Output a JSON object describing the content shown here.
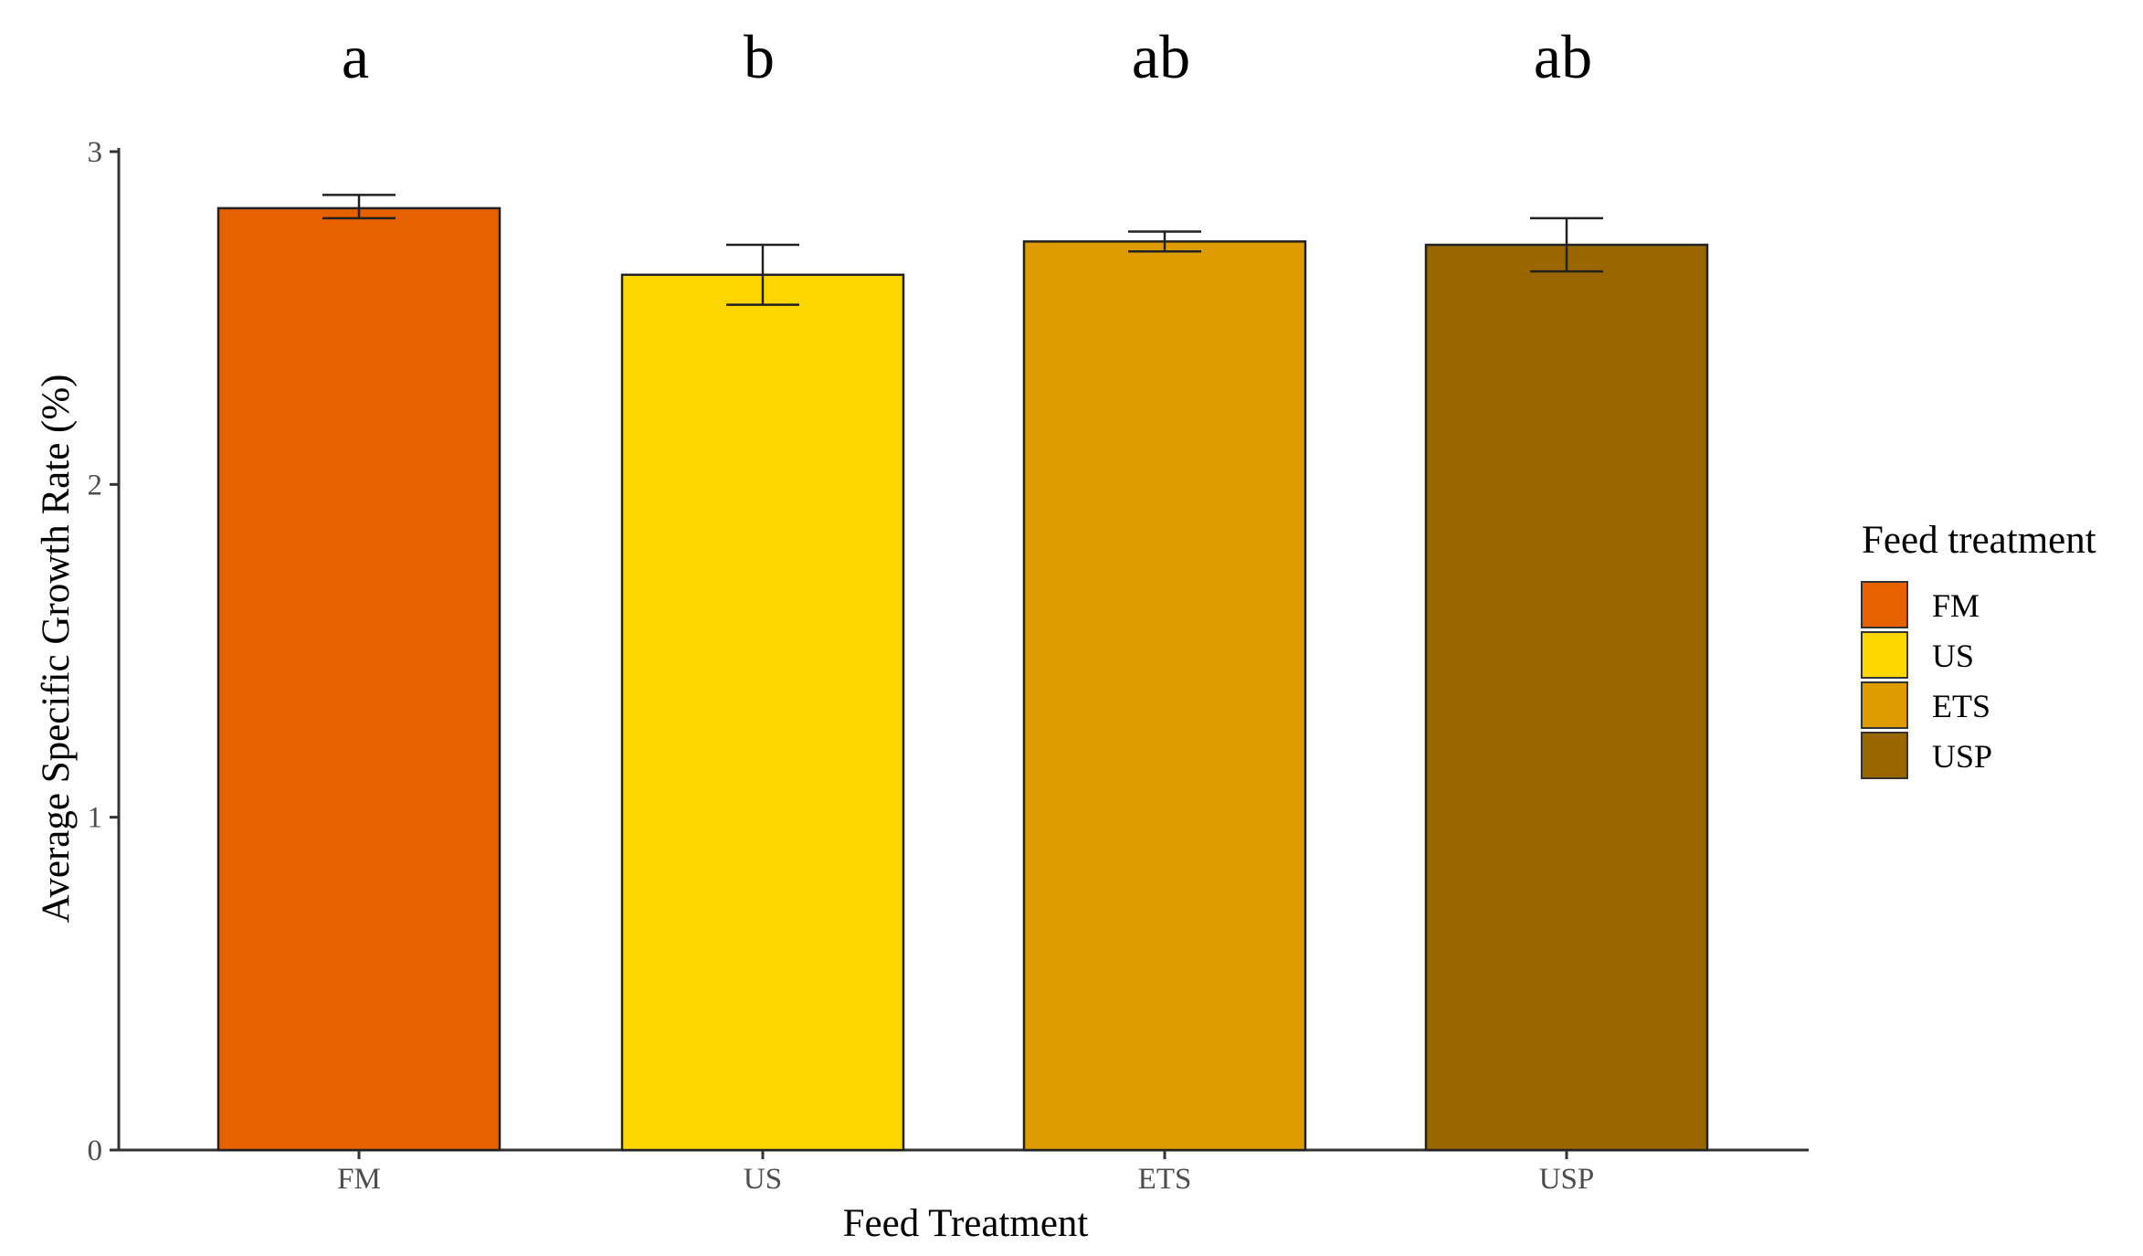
{
  "chart_data": {
    "type": "bar",
    "title": "",
    "xlabel": "Feed Treatment",
    "ylabel": "Average Specific Growth Rate (%)",
    "ylim": [
      0,
      3
    ],
    "yticks": [
      0,
      1,
      2,
      3
    ],
    "grid": false,
    "categories": [
      "FM",
      "US",
      "ETS",
      "USP"
    ],
    "values": [
      2.83,
      2.63,
      2.73,
      2.72
    ],
    "error_low": [
      2.8,
      2.54,
      2.7,
      2.64
    ],
    "error_high": [
      2.87,
      2.72,
      2.76,
      2.8
    ],
    "colors": [
      "#E66100",
      "#FFD700",
      "#DE9C00",
      "#996600"
    ],
    "significance_letters": [
      "a",
      "b",
      "ab",
      "ab"
    ],
    "legend": {
      "title": "Feed treatment",
      "position": "right",
      "entries": [
        "FM",
        "US",
        "ETS",
        "USP"
      ]
    }
  }
}
